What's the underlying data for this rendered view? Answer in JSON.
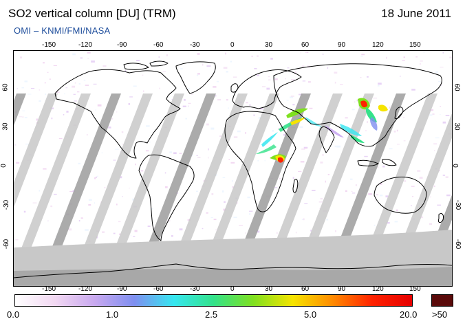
{
  "header": {
    "title": "SO2 vertical column [DU] (TRM)",
    "date": "18 June 2011",
    "credit": "OMI  –  KNMI/FMI/NASA"
  },
  "map": {
    "x_ticks": [
      "-150",
      "-120",
      "-90",
      "-60",
      "-30",
      "0",
      "30",
      "60",
      "90",
      "120",
      "150"
    ],
    "y_ticks": [
      "60",
      "30",
      "0",
      "-30",
      "-60"
    ],
    "ocean_color": "#ffffff",
    "land_outline_color": "#000000",
    "no_data_color": "#c8c8c8",
    "dark_swath_color": "#9c9c9c"
  },
  "colorbar": {
    "labels": [
      "0.0",
      "1.0",
      "2.5",
      "5.0",
      "20.0"
    ],
    "saturation_label": ">50",
    "saturation_color": "#5a0a0a",
    "gradient": [
      "#ffffff",
      "#f2d8f2",
      "#c9a9ef",
      "#7f8ff0",
      "#36e6f0",
      "#33e28a",
      "#7fe020",
      "#f6e400",
      "#ff8a00",
      "#ff2200",
      "#e60000"
    ]
  }
}
